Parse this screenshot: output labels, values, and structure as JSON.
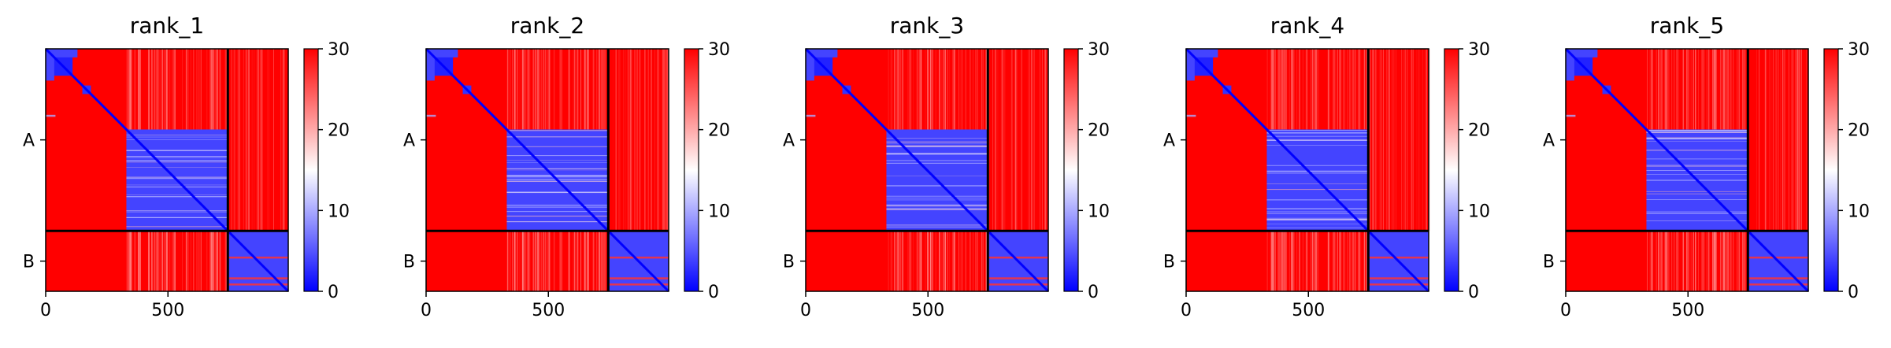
{
  "chart_data": {
    "type": "heatmap",
    "colormap": {
      "name": "bwr",
      "low": "#0000ff",
      "mid": "#ffffff",
      "high": "#ff0000"
    },
    "value_range": [
      0,
      30
    ],
    "colorbar_ticks": [
      0,
      10,
      20,
      30
    ],
    "x_ticks": [
      0,
      500
    ],
    "matrix_size": 992,
    "chain_boundary": 745,
    "chain_labels": [
      "A",
      "B"
    ],
    "panels": [
      {
        "title": "rank_1"
      },
      {
        "title": "rank_2"
      },
      {
        "title": "rank_3"
      },
      {
        "title": "rank_4"
      },
      {
        "title": "rank_5"
      }
    ]
  }
}
